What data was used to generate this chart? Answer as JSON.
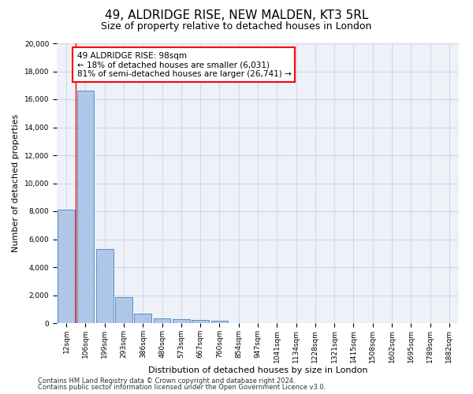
{
  "title_line1": "49, ALDRIDGE RISE, NEW MALDEN, KT3 5RL",
  "title_line2": "Size of property relative to detached houses in London",
  "xlabel": "Distribution of detached houses by size in London",
  "ylabel": "Number of detached properties",
  "footer_line1": "Contains HM Land Registry data © Crown copyright and database right 2024.",
  "footer_line2": "Contains public sector information licensed under the Open Government Licence v3.0.",
  "bin_labels": [
    "12sqm",
    "106sqm",
    "199sqm",
    "293sqm",
    "386sqm",
    "480sqm",
    "573sqm",
    "667sqm",
    "760sqm",
    "854sqm",
    "947sqm",
    "1041sqm",
    "1134sqm",
    "1228sqm",
    "1321sqm",
    "1415sqm",
    "1508sqm",
    "1602sqm",
    "1695sqm",
    "1789sqm",
    "1882sqm"
  ],
  "bar_values": [
    8100,
    16600,
    5300,
    1850,
    650,
    350,
    270,
    210,
    170,
    0,
    0,
    0,
    0,
    0,
    0,
    0,
    0,
    0,
    0,
    0,
    0
  ],
  "bar_color": "#aec6e8",
  "bar_edge_color": "#5a8fc0",
  "grid_color": "#d0d8e8",
  "background_color": "#eef2f8",
  "annotation_text": "49 ALDRIDGE RISE: 98sqm\n← 18% of detached houses are smaller (6,031)\n81% of semi-detached houses are larger (26,741) →",
  "annotation_box_color": "white",
  "annotation_box_edge_color": "red",
  "red_line_x": 0.5,
  "ylim": [
    0,
    20000
  ],
  "yticks": [
    0,
    2000,
    4000,
    6000,
    8000,
    10000,
    12000,
    14000,
    16000,
    18000,
    20000
  ],
  "title_fontsize": 11,
  "subtitle_fontsize": 9,
  "annotation_fontsize": 7.5,
  "ylabel_fontsize": 8,
  "xlabel_fontsize": 8,
  "tick_fontsize": 6.5,
  "footer_fontsize": 6
}
